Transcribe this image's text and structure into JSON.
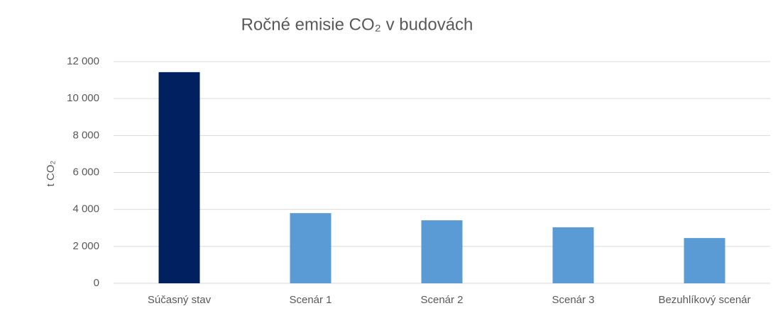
{
  "chart_data": {
    "type": "bar",
    "title": "Ročné emisie CO₂ v budovách",
    "y_label": "t CO₂",
    "categories": [
      "Súčasný stav",
      "Scenár 1",
      "Scenár 2",
      "Scenár 3",
      "Bezuhlíkový scenár"
    ],
    "values": [
      11430,
      3800,
      3410,
      3030,
      2450
    ],
    "colors": [
      "#002060",
      "#5b9bd5",
      "#5b9bd5",
      "#5b9bd5",
      "#5b9bd5"
    ],
    "ylim": [
      0,
      12000
    ],
    "yticks": [
      0,
      {
        "value": 2000,
        "label": "2 000"
      },
      {
        "value": 4000,
        "label": "4 000"
      },
      {
        "value": 6000,
        "label": "6 000"
      },
      {
        "value": 8000,
        "label": "8 000"
      },
      {
        "value": 10000,
        "label": "10 000"
      },
      {
        "value": 12000,
        "label": "12 000"
      }
    ],
    "grid": true
  }
}
